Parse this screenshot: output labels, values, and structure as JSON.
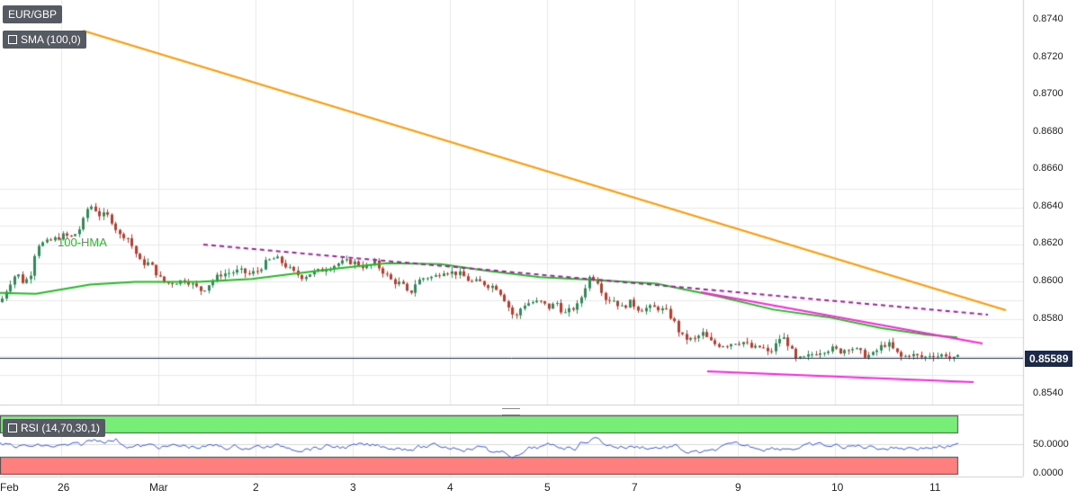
{
  "header": {
    "symbol": "EUR/GBP",
    "indicator": "SMA (100,0)",
    "rsi_label": "RSI (14,70,30,1)"
  },
  "current_price": "0.85589",
  "hma_label": "100-HMA",
  "colors": {
    "up_candle": "#2e8b57",
    "down_candle": "#c0392b",
    "trendline_major": "#ff9900",
    "hma": "#22bb22",
    "wedge": "#ff22dd",
    "support_dashed": "#a020a0",
    "rsi_line": "#3a5bd9",
    "rsi_overbought_fill": "#77ee77",
    "rsi_oversold_fill": "#ff7f7f"
  },
  "chart_data": [
    {
      "type": "candlestick",
      "title": "EUR/GBP",
      "y_ticks": [
        "0.8740",
        "0.8720",
        "0.8700",
        "0.8680",
        "0.8660",
        "0.8640",
        "0.8620",
        "0.8600",
        "0.8580",
        "0.8560",
        "0.8540"
      ],
      "x_ticks": [
        "Feb",
        "26",
        "Mar",
        "2",
        "3",
        "4",
        "5",
        "7",
        "9",
        "10",
        "11"
      ],
      "ylim": [
        0.853,
        0.8748
      ],
      "last_price": 0.85589,
      "grid": true,
      "hma_label": "100-HMA"
    },
    {
      "type": "line",
      "title": "RSI (14,70,30,1)",
      "y_ticks": [
        "50.0000",
        "0.0000"
      ],
      "overbought": 70,
      "oversold": 30
    }
  ]
}
